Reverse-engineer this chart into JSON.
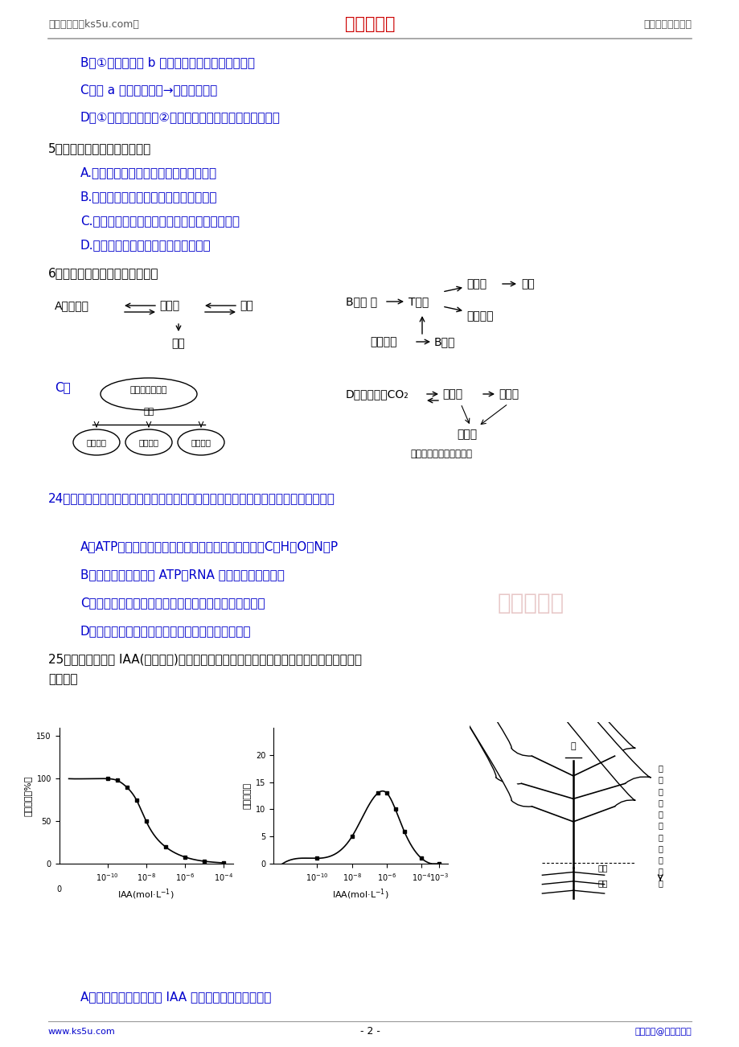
{
  "bg_color": "#ffffff",
  "header_left": "高考资源网（ks5u.com）",
  "header_center": "高考资源网",
  "header_right": "您身边的高考专家",
  "footer_left": "www.ks5u.com",
  "footer_center": "- 2 -",
  "footer_right": "版权所有@高考资源网",
  "line_color": "#888888",
  "text_blue": "#0000cc",
  "text_black": "#000000",
  "text_red": "#cc0000",
  "watermark_text": "高考资源网",
  "watermark_color": "#d4a0a0"
}
